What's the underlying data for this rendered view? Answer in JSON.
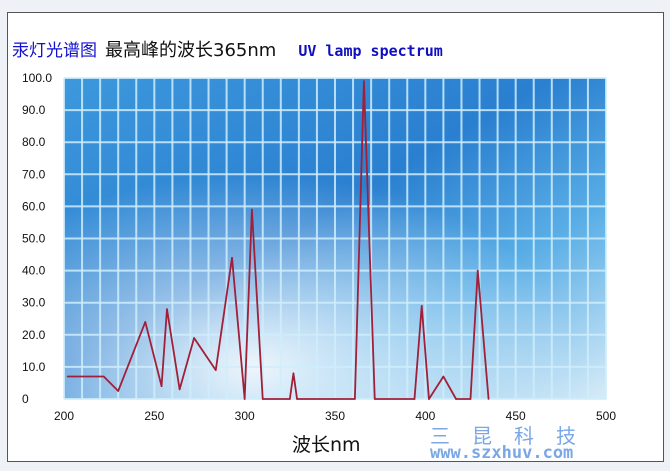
{
  "chart_data": {
    "type": "line",
    "title": "汞灯光谱图",
    "subtitle": "最高峰的波长365nm",
    "title_en": "UV lamp spectrum",
    "xlabel": "波长nm",
    "ylabel": "",
    "xlim": [
      200,
      500
    ],
    "ylim": [
      0,
      100
    ],
    "x_ticks": [
      "200",
      "250",
      "300",
      "350",
      "400",
      "450",
      "500"
    ],
    "y_ticks": [
      "0",
      "10.0",
      "20.0",
      "30.0",
      "40.0",
      "50.0",
      "60.0",
      "70.0",
      "80.0",
      "90.0",
      "100.0"
    ],
    "grid": true,
    "line_color": "#a0203a",
    "x": [
      202,
      222,
      230,
      245,
      254,
      257,
      264,
      272,
      284,
      293,
      300,
      304,
      310,
      325,
      327,
      329,
      361,
      366,
      372,
      394,
      398,
      402,
      410,
      417,
      425,
      429,
      435
    ],
    "y": [
      7,
      7,
      2.5,
      24,
      4,
      28,
      3,
      19,
      9,
      44,
      0,
      59,
      0,
      0,
      8,
      0,
      0,
      99,
      0,
      0,
      29,
      0,
      7,
      0,
      0,
      40,
      0
    ]
  },
  "watermark": {
    "company": "三昆科技",
    "url": "www.szxhuv.com"
  }
}
